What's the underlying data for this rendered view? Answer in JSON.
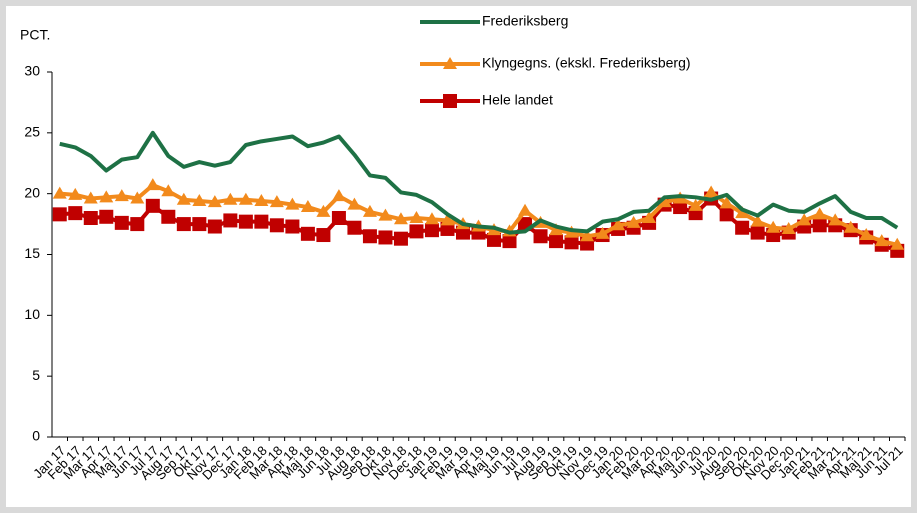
{
  "chart_data": {
    "type": "line",
    "ylabel": "PCT.",
    "categories": [
      "Jan 17",
      "Feb 17",
      "Mar 17",
      "Apr 17",
      "Maj 17",
      "Jun 17",
      "Jul 17",
      "Aug 17",
      "Sep 17",
      "Okt 17",
      "Nov 17",
      "Dec 17",
      "Jan 18",
      "Feb 18",
      "Mar 18",
      "Apr 18",
      "Maj 18",
      "Jun 18",
      "Jul 18",
      "Aug 18",
      "Sep 18",
      "Okt 18",
      "Nov 18",
      "Dec 18",
      "Jan 19",
      "Feb 19",
      "Mar 19",
      "Apr 19",
      "Maj 19",
      "Jun 19",
      "Jul 19",
      "Aug 19",
      "Sep 19",
      "Okt 19",
      "Nov 19",
      "Dec 19",
      "Jan 20",
      "Feb 20",
      "Mar 20",
      "Apr 20",
      "Maj 20",
      "Jun 20",
      "Jul 20",
      "Aug 20",
      "Sep 20",
      "Okt 20",
      "Nov 20",
      "Dec 20",
      "Jan 21",
      "Feb 21",
      "Mar 21",
      "Apr 21",
      "Maj 21",
      "Jun 21",
      "Jul 21"
    ],
    "series": [
      {
        "name": "Frederiksberg",
        "color": "#1e7145",
        "marker": "none",
        "values": [
          24.1,
          23.8,
          23.1,
          21.9,
          22.8,
          23.0,
          25.0,
          23.1,
          22.2,
          22.6,
          22.3,
          22.6,
          24.0,
          24.3,
          24.5,
          24.7,
          23.9,
          24.2,
          24.7,
          23.2,
          21.5,
          21.3,
          20.1,
          19.9,
          19.3,
          18.3,
          17.5,
          17.3,
          17.2,
          16.8,
          16.9,
          17.8,
          17.3,
          17.0,
          16.9,
          17.7,
          17.9,
          18.5,
          18.6,
          19.7,
          19.8,
          19.7,
          19.5,
          19.9,
          18.7,
          18.2,
          19.1,
          18.6,
          18.5,
          19.2,
          19.8,
          18.5,
          18.0,
          18.0,
          17.2
        ]
      },
      {
        "name": "Klyngegns. (ekskl. Frederiksberg)",
        "color": "#f28a1c",
        "marker": "triangle",
        "values": [
          20.0,
          19.9,
          19.6,
          19.7,
          19.8,
          19.6,
          20.7,
          20.2,
          19.5,
          19.4,
          19.3,
          19.5,
          19.5,
          19.4,
          19.3,
          19.1,
          18.9,
          18.5,
          19.8,
          19.1,
          18.5,
          18.2,
          17.9,
          18.0,
          17.9,
          17.8,
          17.5,
          17.3,
          17.0,
          16.9,
          18.6,
          17.6,
          17.0,
          16.8,
          16.5,
          16.7,
          17.4,
          17.6,
          18.0,
          19.3,
          19.6,
          19.0,
          20.1,
          19.2,
          18.4,
          17.7,
          17.2,
          17.1,
          17.8,
          18.3,
          17.8,
          17.2,
          16.6,
          16.1,
          15.8
        ]
      },
      {
        "name": "Hele landet",
        "color": "#c00000",
        "marker": "square",
        "values": [
          18.3,
          18.4,
          18.0,
          18.1,
          17.6,
          17.5,
          19.0,
          18.1,
          17.5,
          17.5,
          17.3,
          17.8,
          17.7,
          17.7,
          17.4,
          17.3,
          16.7,
          16.6,
          18.0,
          17.2,
          16.5,
          16.4,
          16.3,
          16.9,
          17.0,
          17.1,
          16.8,
          16.8,
          16.2,
          16.1,
          17.5,
          16.5,
          16.1,
          16.0,
          15.9,
          16.6,
          17.1,
          17.2,
          17.6,
          19.1,
          18.9,
          18.4,
          19.6,
          18.3,
          17.2,
          16.8,
          16.6,
          16.8,
          17.3,
          17.4,
          17.4,
          17.0,
          16.4,
          15.8,
          15.3
        ]
      }
    ],
    "ylim": [
      0,
      30
    ],
    "yticks": [
      0,
      5,
      10,
      15,
      20,
      25,
      30
    ]
  }
}
